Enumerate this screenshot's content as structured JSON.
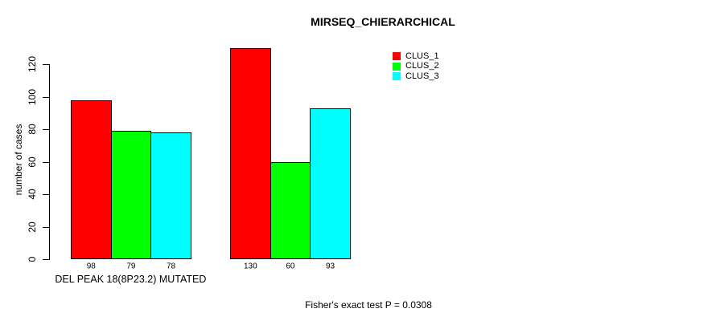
{
  "figure": {
    "background": "#FFFFFF"
  },
  "chart_data": {
    "type": "bar",
    "title": "MIRSEQ_CHIERARCHICAL",
    "ylabel": "number of cases",
    "xlabel": "DEL PEAK 18(8P23.2) MUTATED",
    "ylim": [
      0,
      130
    ],
    "yticks": [
      0,
      20,
      40,
      60,
      80,
      100,
      120
    ],
    "grid": false,
    "legend_position": "top-right",
    "group_labels": [
      "DEL PEAK 18(8P23.2) MUTATED",
      ""
    ],
    "series": [
      {
        "name": "CLUS_1",
        "color": "#FF0000",
        "values": [
          98,
          130
        ]
      },
      {
        "name": "CLUS_2",
        "color": "#00FF00",
        "values": [
          79,
          60
        ]
      },
      {
        "name": "CLUS_3",
        "color": "#00FFFF",
        "values": [
          78,
          93
        ]
      }
    ],
    "bar_value_labels_shown": true,
    "bar_border_color": "#000000",
    "annotation": "Fisher's exact test P = 0.0308"
  }
}
